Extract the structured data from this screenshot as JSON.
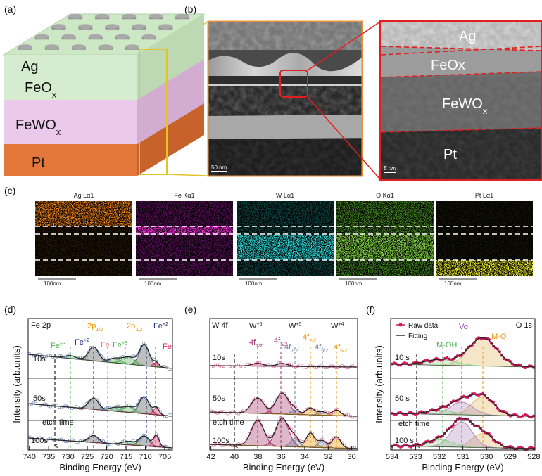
{
  "panel_labels": [
    "(a)",
    "(b)",
    "(c)",
    "(d)",
    "(e)",
    "(f)"
  ],
  "stack": {
    "layers": [
      {
        "text": "Ag"
      },
      {
        "text": "FeO",
        "sub": "x"
      },
      {
        "text": "FeWO",
        "sub": "x"
      },
      {
        "text": "Pt"
      }
    ]
  },
  "tem": {
    "scale_bar": "50 nm"
  },
  "zoom": {
    "labels": [
      {
        "text": "Ag"
      },
      {
        "text": "FeOx"
      },
      {
        "text": "FeWO",
        "sub": "x"
      },
      {
        "text": "Pt"
      }
    ],
    "scale_bar": "5 nm"
  },
  "eds": {
    "maps": [
      {
        "title": "Ag Lα1",
        "scale_bar": "100nm"
      },
      {
        "title": "Fe Kα1",
        "scale_bar": "100nm"
      },
      {
        "title": "W Lα1",
        "scale_bar": "100nm"
      },
      {
        "title": "O Kα1",
        "scale_bar": "100nm"
      },
      {
        "title": "Pt Lα1",
        "scale_bar": "100nm"
      }
    ]
  },
  "xps": [
    {
      "title": "Fe 2p",
      "xlabel": "Binding Energy (eV)",
      "ylabel": "Intensity (arb.units)",
      "xlim": [
        740.3,
        703
      ],
      "xticks": [
        740,
        735,
        730,
        725,
        720,
        715,
        710,
        705
      ],
      "times": [
        "10s",
        "50s",
        "100s"
      ],
      "etch_label": "etch time",
      "annotations": [
        {
          "text": "2p",
          "sub": "1/2"
        },
        {
          "text": "2p",
          "sub": "3/2"
        },
        {
          "text": "Fe",
          "sup": "+2"
        },
        {
          "text": "Fe",
          "sup": "+3"
        },
        {
          "text": "Fe"
        },
        {
          "text": "Fe",
          "sup": "+3"
        },
        {
          "text": "Fe",
          "sup": "+2"
        },
        {
          "text": "Fe"
        }
      ]
    },
    {
      "title": "W 4f",
      "xlabel": "Binding Energy (eV)",
      "xlim": [
        42.1,
        29.5
      ],
      "xticks": [
        42,
        40,
        38,
        36,
        34,
        32,
        30
      ],
      "times": [
        "10s",
        "50s",
        "100s"
      ],
      "etch_label": "etch time",
      "annotations": [
        {
          "text": "W",
          "sup": "+6"
        },
        {
          "text": "W",
          "sup": "+5"
        },
        {
          "text": "W",
          "sup": "+4"
        },
        {
          "text": "4f",
          "sub": "7/2"
        },
        {
          "text": "4f",
          "sub": "5/2"
        },
        {
          "text": "4f",
          "sub": "7/2"
        },
        {
          "text": "4f",
          "sub": "7/2"
        },
        {
          "text": "4f",
          "sub": "5/2"
        },
        {
          "text": "4f",
          "sub": "5/2"
        }
      ]
    },
    {
      "title": "O 1s",
      "xlabel": "Binding Energy (eV)",
      "ylabel": "Intensity (arb.units)",
      "xlim": [
        534.06,
        527.95
      ],
      "xticks": [
        534,
        533,
        532,
        531,
        530,
        529,
        528
      ],
      "times": [
        "10 s",
        "50 s",
        "100 s"
      ],
      "etch_label": "etch time",
      "legend": [
        "Raw data",
        "Fitting"
      ],
      "annotations": [
        {
          "text": "Vo"
        },
        {
          "text": "M-O"
        },
        {
          "text": "M-OH"
        }
      ]
    }
  ]
}
